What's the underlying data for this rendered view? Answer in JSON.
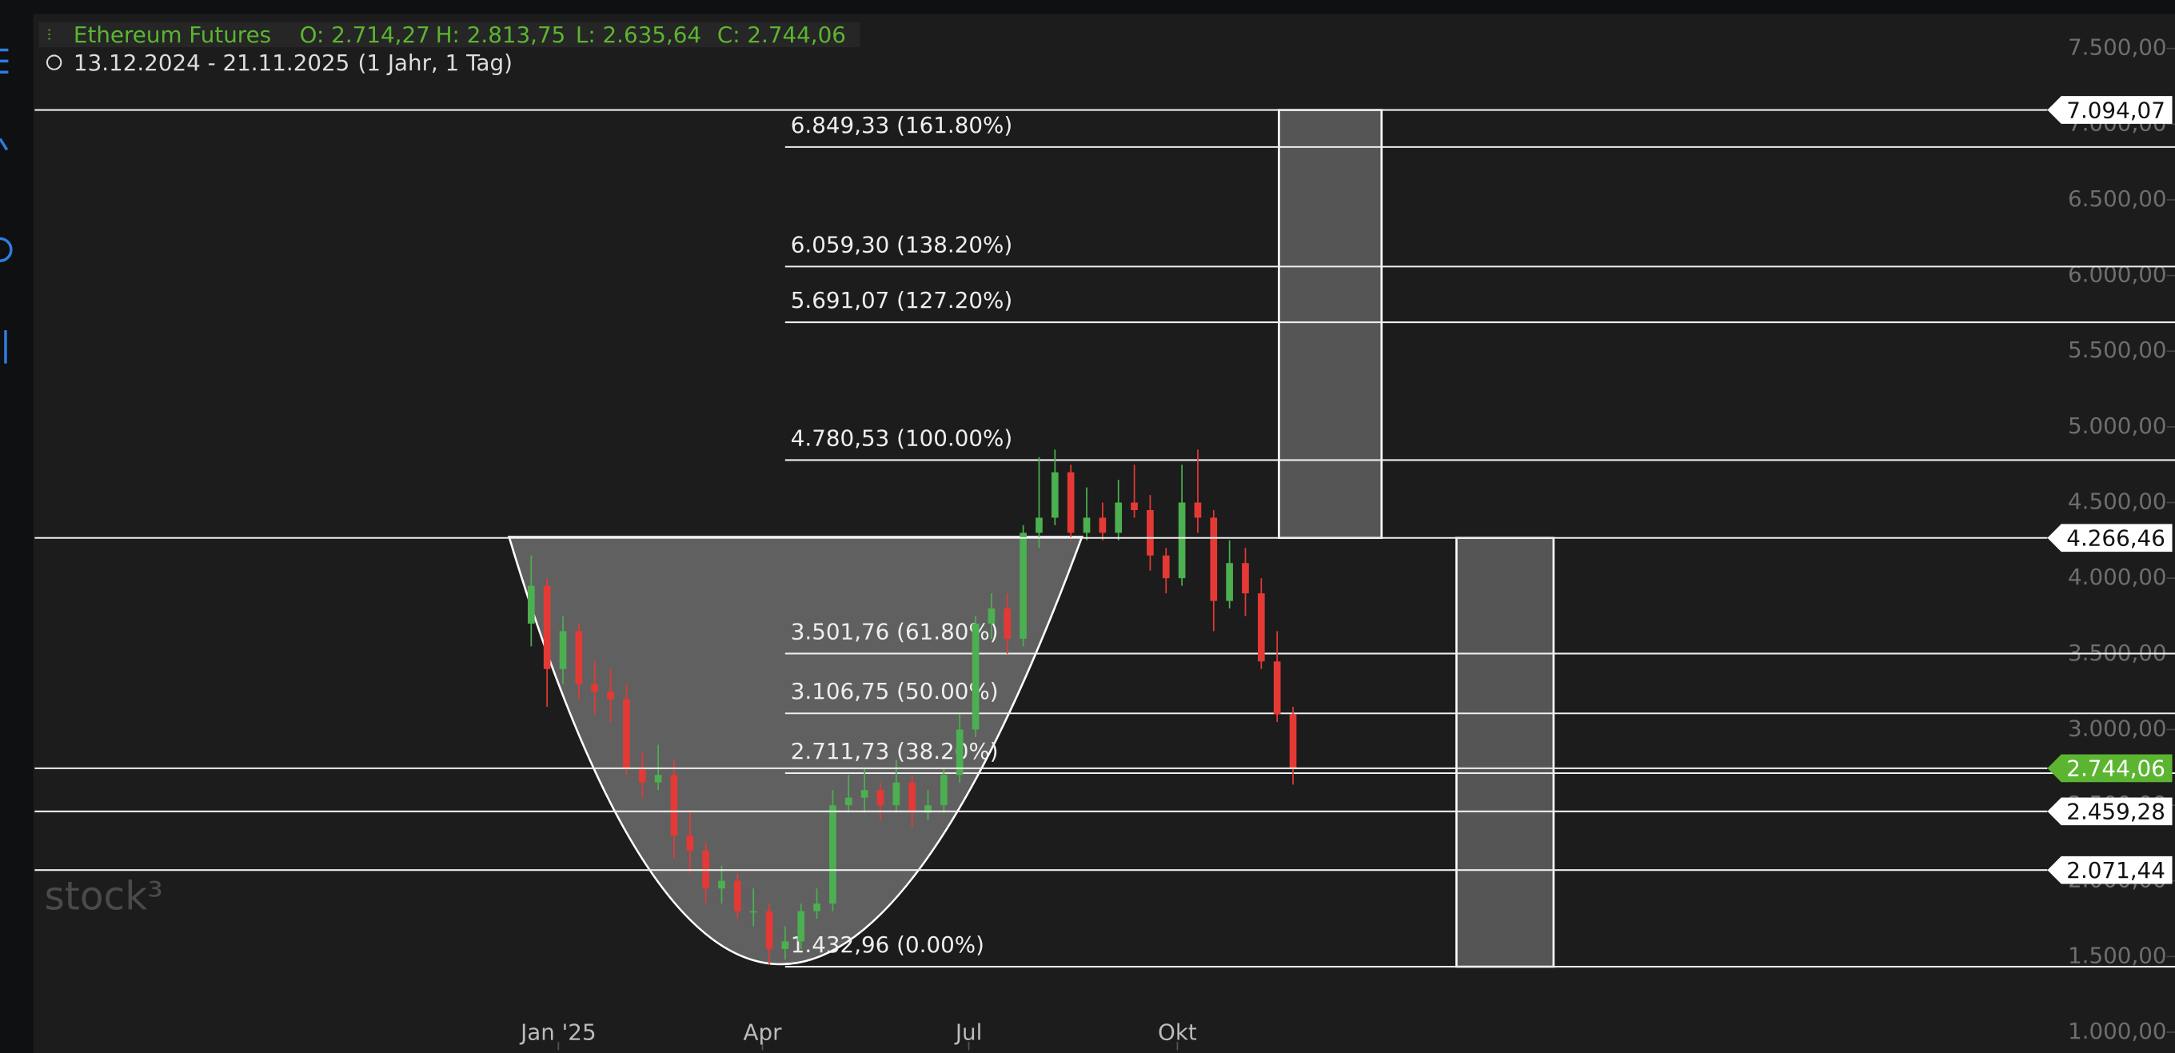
{
  "chart_data": {
    "type": "candlestick",
    "title": "Ethereum Futures",
    "ohlc_labels": [
      "O: 2.714,27",
      "H: 2.813,75",
      "L: 2.635,64",
      "C: 2.744,06"
    ],
    "subtitle": "13.12.2024 - 21.11.2025",
    "period": "(1 Jahr, 1 Tag)",
    "watermark": "stock³",
    "up_color": "#4caf50",
    "down_color": "#e53935",
    "x": [
      -12,
      -5,
      2,
      9,
      16,
      23,
      30,
      37,
      44,
      51,
      58,
      65,
      72,
      79,
      86,
      93,
      100,
      107,
      114,
      121,
      128,
      135,
      142,
      149,
      156,
      163,
      170,
      177,
      184,
      191,
      198,
      205,
      212,
      219,
      226,
      233,
      240,
      247,
      254,
      261,
      268,
      275,
      282,
      289,
      296,
      303,
      310,
      317,
      324
    ],
    "open": [
      3700,
      3950,
      3400,
      3650,
      3300,
      3250,
      3200,
      2750,
      2650,
      2700,
      2300,
      2200,
      1950,
      2000,
      1800,
      1800,
      1550,
      1600,
      1800,
      1850,
      2500,
      2550,
      2600,
      2500,
      2650,
      2450,
      2500,
      2700,
      3000,
      3700,
      3800,
      3600,
      4300,
      4400,
      4700,
      4300,
      4400,
      4300,
      4500,
      4450,
      4150,
      4000,
      4500,
      4400,
      3850,
      4100,
      3900,
      3450,
      3100
    ],
    "high": [
      4150,
      4000,
      3750,
      3700,
      3450,
      3400,
      3300,
      2850,
      2900,
      2800,
      2450,
      2250,
      2100,
      2050,
      1950,
      1850,
      1700,
      1850,
      1950,
      2600,
      2700,
      2750,
      2650,
      2800,
      2700,
      2600,
      2750,
      3100,
      3750,
      3900,
      3900,
      4350,
      4800,
      4850,
      4750,
      4600,
      4500,
      4650,
      4750,
      4550,
      4200,
      4750,
      4850,
      4450,
      4250,
      4200,
      4000,
      3650,
      3150
    ],
    "low": [
      3550,
      3150,
      3300,
      3200,
      3100,
      3050,
      2700,
      2550,
      2600,
      2150,
      2050,
      1850,
      1850,
      1750,
      1700,
      1450,
      1480,
      1550,
      1750,
      1800,
      2450,
      2450,
      2400,
      2450,
      2350,
      2400,
      2450,
      2650,
      2950,
      3600,
      3500,
      3550,
      4200,
      4350,
      4250,
      4250,
      4250,
      4250,
      4400,
      4050,
      3900,
      3950,
      4300,
      3650,
      3800,
      3750,
      3400,
      3050,
      2635.64
    ],
    "close": [
      3950,
      3400,
      3650,
      3300,
      3250,
      3200,
      2750,
      2650,
      2700,
      2300,
      2200,
      1950,
      2000,
      1800,
      1800,
      1550,
      1600,
      1800,
      1850,
      2500,
      2550,
      2600,
      2500,
      2650,
      2450,
      2500,
      2700,
      3000,
      3700,
      3800,
      3600,
      4300,
      4400,
      4700,
      4300,
      4400,
      4300,
      4500,
      4450,
      4150,
      4000,
      4500,
      4400,
      3850,
      4100,
      3900,
      3450,
      3100,
      2744.06
    ],
    "xlim": [
      -231,
      713
    ],
    "ylim": [
      881,
      7729
    ],
    "xticks": [
      {
        "value": 0,
        "label": "Jan '25"
      },
      {
        "value": 90,
        "label": "Apr"
      },
      {
        "value": 181,
        "label": "Jul"
      },
      {
        "value": 273,
        "label": "Okt"
      }
    ],
    "yticks": [
      {
        "value": 1000,
        "label": "1.000,00"
      },
      {
        "value": 1500,
        "label": "1.500,00"
      },
      {
        "value": 2000,
        "label": "2.000,00"
      },
      {
        "value": 2500,
        "label": "2.500,00"
      },
      {
        "value": 3000,
        "label": "3.000,00"
      },
      {
        "value": 3500,
        "label": "3.500,00"
      },
      {
        "value": 4000,
        "label": "4.000,00"
      },
      {
        "value": 4500,
        "label": "4.500,00"
      },
      {
        "value": 5000,
        "label": "5.000,00"
      },
      {
        "value": 5500,
        "label": "5.500,00"
      },
      {
        "value": 6000,
        "label": "6.000,00"
      },
      {
        "value": 6500,
        "label": "6.500,00"
      },
      {
        "value": 7000,
        "label": "7.000,00"
      },
      {
        "value": 7500,
        "label": "7.500,00"
      }
    ],
    "price_levels": [
      {
        "value": 7094.07,
        "label": "7.094,07"
      },
      {
        "value": 4266.46,
        "label": "4.266,46"
      },
      {
        "value": 2744.06,
        "label": "2.744,06",
        "color": "#5cb531"
      },
      {
        "value": 2459.28,
        "label": "2.459,28"
      },
      {
        "value": 2071.44,
        "label": "2.071,44"
      }
    ],
    "fib_levels": [
      {
        "value": 6849.33,
        "label": "6.849,33 (161.80%)"
      },
      {
        "value": 6059.3,
        "label": "6.059,30 (138.20%)"
      },
      {
        "value": 5691.07,
        "label": "5.691,07 (127.20%)"
      },
      {
        "value": 4780.53,
        "label": "4.780,53 (100.00%)"
      },
      {
        "value": 3501.76,
        "label": "3.501,76 (61.80%)"
      },
      {
        "value": 3106.75,
        "label": "3.106,75 (50.00%)"
      },
      {
        "value": 2711.73,
        "label": "2.711,73 (38.20%)"
      },
      {
        "value": 1432.96,
        "label": "1.432,96 (0.00%)"
      }
    ]
  }
}
